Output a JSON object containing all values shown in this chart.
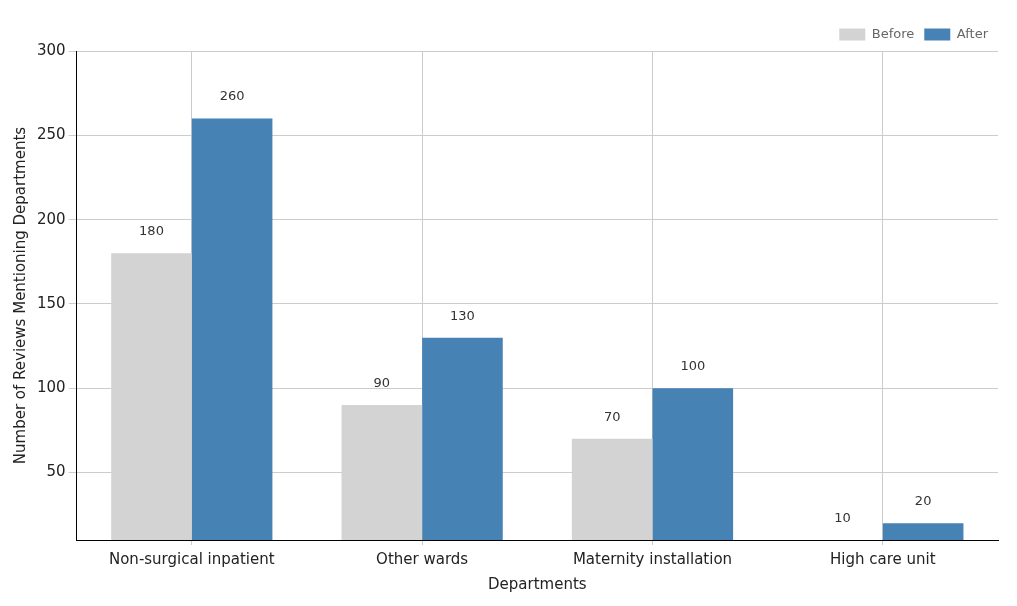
{
  "chart_data": {
    "type": "bar",
    "xlabel": "Departments",
    "ylabel": "Number of Reviews Mentioning Departments",
    "categories": [
      "Non-surgical inpatient",
      "Other wards",
      "Maternity installation",
      "High care unit"
    ],
    "series": [
      {
        "name": "Before",
        "color": "#d3d3d3",
        "values": [
          180,
          90,
          70,
          10
        ]
      },
      {
        "name": "After",
        "color": "#4682b4",
        "values": [
          260,
          130,
          100,
          20
        ]
      }
    ],
    "ylim": [
      10,
      300
    ],
    "yticks": [
      50,
      100,
      150,
      200,
      250,
      300
    ],
    "grid": true,
    "legend": "top right",
    "data_labels": true
  }
}
